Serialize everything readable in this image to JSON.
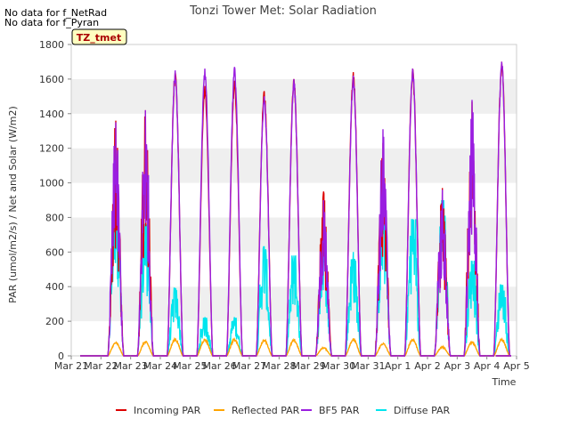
{
  "chart_data": {
    "type": "line",
    "title": "Tonzi Tower Met: Solar Radiation",
    "xlabel": "Time",
    "ylabel": "PAR (umol/m2/s) / Net and Solar (W/m2)",
    "ylim": [
      0,
      1800
    ],
    "yticks": [
      0,
      200,
      400,
      600,
      800,
      1000,
      1200,
      1400,
      1600,
      1800
    ],
    "xlim": [
      0,
      15
    ],
    "xtick_labels": [
      "Mar 21",
      "Mar 22",
      "Mar 23",
      "Mar 24",
      "Mar 25",
      "Mar 26",
      "Mar 27",
      "Mar 28",
      "Mar 29",
      "Mar 30",
      "Mar 31",
      "Apr 1",
      "Apr 2",
      "Apr 3",
      "Apr 4",
      "Apr 5"
    ],
    "x_unit": "days since Mar 21 00:00",
    "grid": "horizontal bands",
    "notes": [
      "No data for f_NetRad",
      "No data for f_Pyran"
    ],
    "tag": "TZ_tmet",
    "legend_position": "bottom",
    "series": [
      {
        "name": "Incoming PAR",
        "color": "#dd0000",
        "daily_peaks": [
          1360,
          1420,
          1640,
          1560,
          1590,
          1530,
          1600,
          950,
          1640,
          1230,
          1660,
          970,
          1470,
          1700
        ],
        "day_shape": "irregular-cloudy-peaks"
      },
      {
        "name": "Reflected PAR",
        "color": "#ffa500",
        "daily_peaks": [
          80,
          85,
          100,
          100,
          100,
          95,
          95,
          50,
          100,
          75,
          100,
          55,
          85,
          100
        ],
        "day_shape": "smooth-small"
      },
      {
        "name": "BF5 PAR",
        "color": "#9a1ee0",
        "daily_peaks": [
          1350,
          1420,
          1650,
          1660,
          1670,
          1500,
          1600,
          900,
          1620,
          1310,
          1660,
          960,
          1480,
          1700
        ],
        "day_shape": "irregular-cloudy-peaks"
      },
      {
        "name": "Diffuse PAR",
        "color": "#00e5ee",
        "daily_peaks": [
          960,
          760,
          390,
          220,
          220,
          630,
          580,
          640,
          600,
          820,
          790,
          900,
          550,
          410
        ],
        "day_shape": "noisy"
      }
    ]
  }
}
